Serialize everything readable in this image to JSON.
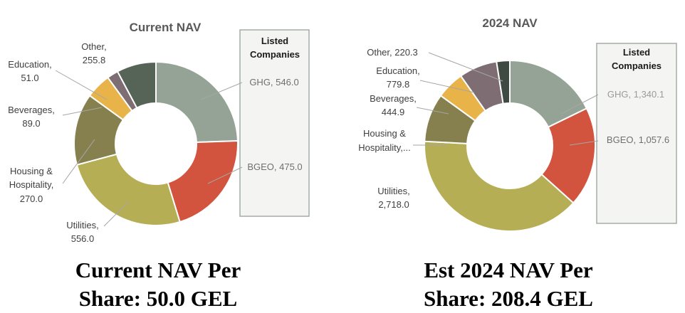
{
  "chart_data": [
    {
      "type": "donut",
      "title": "Current NAV",
      "listed_box_title": "Listed Companies",
      "slices": [
        {
          "label": "GHG",
          "value": 546.0,
          "display": "546.0",
          "color": "#94a396",
          "listed": true
        },
        {
          "label": "BGEO",
          "value": 475.0,
          "display": "475.0",
          "color": "#d2533e",
          "listed": true
        },
        {
          "label": "Utilities",
          "value": 556.0,
          "display": "556.0",
          "color": "#b6ae55",
          "listed": false
        },
        {
          "label": "Housing & Hospitality",
          "value": 270.0,
          "display": "270.0",
          "color": "#86804f",
          "listed": false
        },
        {
          "label": "Beverages",
          "value": 89.0,
          "display": "89.0",
          "color": "#e8b44a",
          "listed": false
        },
        {
          "label": "Education",
          "value": 51.0,
          "display": "51.0",
          "color": "#7e6d72",
          "listed": false
        },
        {
          "label": "Other",
          "value": 255.8,
          "display": "255.8",
          "color": "#566357",
          "listed": false
        }
      ]
    },
    {
      "type": "donut",
      "title": "2024 NAV",
      "listed_box_title": "Listed Companies",
      "slices": [
        {
          "label": "GHG",
          "value": 1340.1,
          "display": "1,340.1",
          "color": "#94a396",
          "listed": true
        },
        {
          "label": "BGEO",
          "value": 1057.6,
          "display": "1,057.6",
          "color": "#d2533e",
          "listed": true
        },
        {
          "label": "Utilities",
          "value": 2718.0,
          "display": "2,718.0",
          "color": "#b6ae55",
          "listed": false
        },
        {
          "label": "Housing & Hospitality,...",
          "value": null,
          "display": "",
          "color": "#86804f",
          "listed": false
        },
        {
          "label": "Beverages",
          "value": 444.9,
          "display": "444.9",
          "color": "#e8b44a",
          "listed": false
        },
        {
          "label": "Education",
          "value": 779.8,
          "display": "779.8",
          "color": "#7e6d72",
          "listed": false
        },
        {
          "label": "Other",
          "value": 220.3,
          "display": "220.3",
          "color": "#3f4a42",
          "listed": false
        }
      ]
    }
  ],
  "captions": {
    "left": {
      "line1": "Current NAV Per",
      "line2": "Share: 50.0 GEL"
    },
    "right": {
      "line1": "Est 2024 NAV Per",
      "line2": "Share: 208.4 GEL"
    }
  }
}
